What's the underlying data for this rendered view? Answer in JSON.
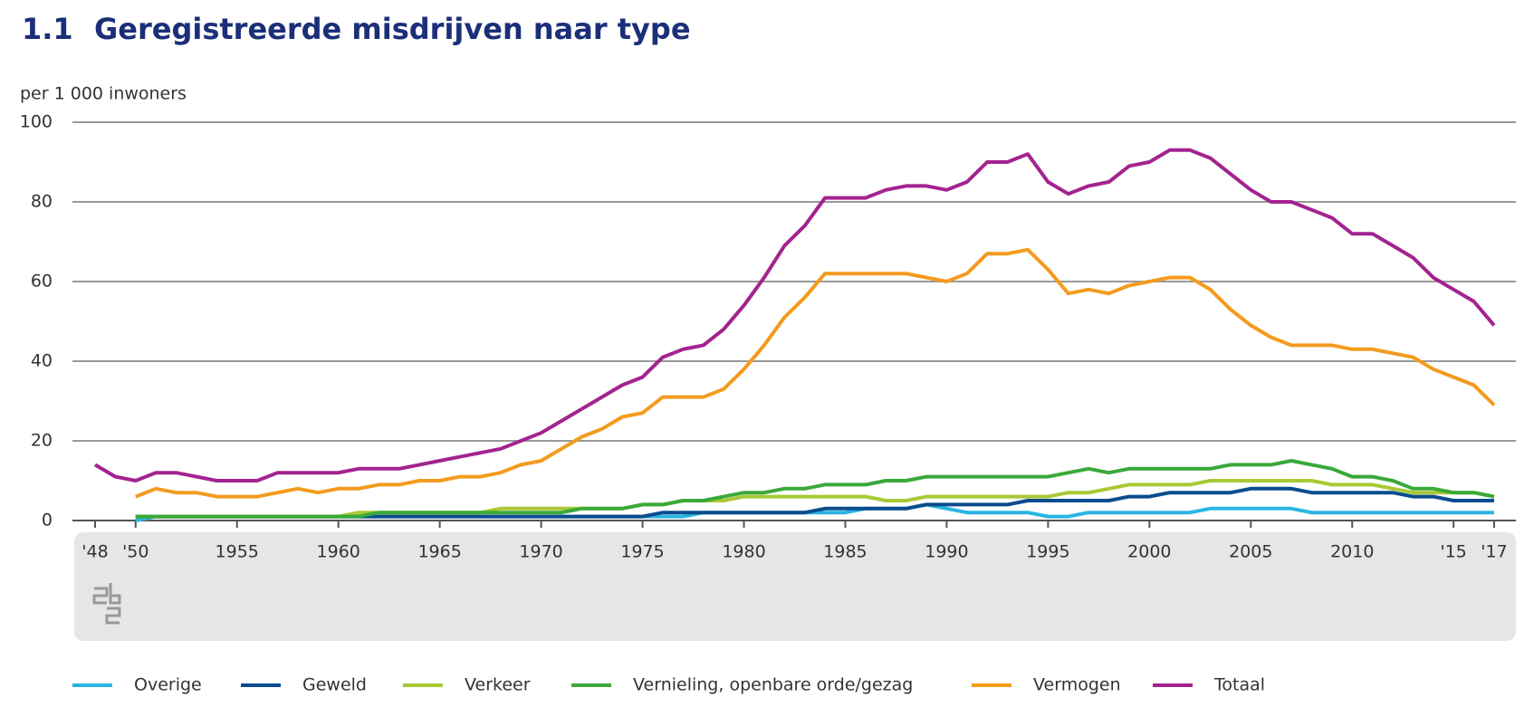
{
  "chart_data": {
    "type": "line",
    "number": "1.1",
    "title": "Geregistreerde misdrijven naar type",
    "y_label": "per 1 000 inwoners",
    "x": [
      1948,
      1949,
      1950,
      1951,
      1952,
      1953,
      1954,
      1955,
      1956,
      1957,
      1958,
      1959,
      1960,
      1961,
      1962,
      1963,
      1964,
      1965,
      1966,
      1967,
      1968,
      1969,
      1970,
      1971,
      1972,
      1973,
      1974,
      1975,
      1976,
      1977,
      1978,
      1979,
      1980,
      1981,
      1982,
      1983,
      1984,
      1985,
      1986,
      1987,
      1988,
      1989,
      1990,
      1991,
      1992,
      1993,
      1994,
      1995,
      1996,
      1997,
      1998,
      1999,
      2000,
      2001,
      2002,
      2003,
      2004,
      2005,
      2006,
      2007,
      2008,
      2009,
      2010,
      2011,
      2012,
      2013,
      2014,
      2015,
      2016,
      2017
    ],
    "xlim": [
      1948,
      2017
    ],
    "xticks": [
      {
        "value": 1948,
        "label": "'48"
      },
      {
        "value": 1950,
        "label": "'50"
      },
      1955,
      1960,
      1965,
      1970,
      1975,
      1980,
      1985,
      1990,
      1995,
      2000,
      2005,
      2010,
      {
        "value": 2015,
        "label": "'15"
      },
      {
        "value": 2017,
        "label": "'17"
      }
    ],
    "ylim": [
      0,
      100
    ],
    "yticks": [
      0,
      20,
      40,
      60,
      80,
      100
    ],
    "grid": true,
    "legend": "bottom",
    "series": [
      {
        "name": "Overige",
        "color": "#2bb5e2",
        "values": [
          null,
          null,
          0,
          1,
          1,
          1,
          1,
          1,
          1,
          1,
          1,
          1,
          1,
          1,
          1,
          1,
          1,
          1,
          1,
          1,
          1,
          1,
          1,
          1,
          1,
          1,
          1,
          1,
          1,
          1,
          2,
          2,
          2,
          2,
          2,
          2,
          2,
          2,
          3,
          3,
          3,
          4,
          3,
          2,
          2,
          2,
          2,
          1,
          1,
          2,
          2,
          2,
          2,
          2,
          2,
          3,
          3,
          3,
          3,
          3,
          2,
          2,
          2,
          2,
          2,
          2,
          2,
          2,
          2,
          2
        ]
      },
      {
        "name": "Geweld",
        "color": "#0b4c8e",
        "values": [
          null,
          null,
          1,
          1,
          1,
          1,
          1,
          1,
          1,
          1,
          1,
          1,
          1,
          1,
          1,
          1,
          1,
          1,
          1,
          1,
          1,
          1,
          1,
          1,
          1,
          1,
          1,
          1,
          2,
          2,
          2,
          2,
          2,
          2,
          2,
          2,
          3,
          3,
          3,
          3,
          3,
          4,
          4,
          4,
          4,
          4,
          5,
          5,
          5,
          5,
          5,
          6,
          6,
          7,
          7,
          7,
          7,
          8,
          8,
          8,
          7,
          7,
          7,
          7,
          7,
          6,
          6,
          5,
          5,
          5
        ]
      },
      {
        "name": "Verkeer",
        "color": "#a8c934",
        "values": [
          null,
          null,
          1,
          1,
          1,
          1,
          1,
          1,
          1,
          1,
          1,
          1,
          1,
          2,
          2,
          2,
          2,
          2,
          2,
          2,
          3,
          3,
          3,
          3,
          3,
          3,
          3,
          4,
          4,
          5,
          5,
          5,
          6,
          6,
          6,
          6,
          6,
          6,
          6,
          5,
          5,
          6,
          6,
          6,
          6,
          6,
          6,
          6,
          7,
          7,
          8,
          9,
          9,
          9,
          9,
          10,
          10,
          10,
          10,
          10,
          10,
          9,
          9,
          9,
          8,
          7,
          7,
          7,
          7,
          6
        ]
      },
      {
        "name": "Vernieling, openbare orde/gezag",
        "color": "#3aa93a",
        "values": [
          null,
          null,
          1,
          1,
          1,
          1,
          1,
          1,
          1,
          1,
          1,
          1,
          1,
          1,
          2,
          2,
          2,
          2,
          2,
          2,
          2,
          2,
          2,
          2,
          3,
          3,
          3,
          4,
          4,
          5,
          5,
          6,
          7,
          7,
          8,
          8,
          9,
          9,
          9,
          10,
          10,
          11,
          11,
          11,
          11,
          11,
          11,
          11,
          12,
          13,
          12,
          13,
          13,
          13,
          13,
          13,
          14,
          14,
          14,
          15,
          14,
          13,
          11,
          11,
          10,
          8,
          8,
          7,
          7,
          6
        ]
      },
      {
        "name": "Vermogen",
        "color": "#f39b1e",
        "values": [
          null,
          null,
          6,
          8,
          7,
          7,
          6,
          6,
          6,
          7,
          8,
          7,
          8,
          8,
          9,
          9,
          10,
          10,
          11,
          11,
          12,
          14,
          15,
          18,
          21,
          23,
          26,
          27,
          31,
          31,
          31,
          33,
          38,
          44,
          51,
          56,
          62,
          62,
          62,
          62,
          62,
          61,
          60,
          62,
          67,
          67,
          68,
          63,
          57,
          58,
          57,
          59,
          60,
          61,
          61,
          58,
          53,
          49,
          46,
          44,
          44,
          44,
          43,
          43,
          42,
          41,
          38,
          36,
          34,
          29
        ]
      },
      {
        "name": "Totaal",
        "color": "#a3238f",
        "values": [
          14,
          11,
          10,
          12,
          12,
          11,
          10,
          10,
          10,
          12,
          12,
          12,
          12,
          13,
          13,
          13,
          14,
          15,
          16,
          17,
          18,
          20,
          22,
          25,
          28,
          31,
          34,
          36,
          41,
          43,
          44,
          48,
          54,
          61,
          69,
          74,
          81,
          81,
          81,
          83,
          84,
          84,
          83,
          85,
          90,
          90,
          92,
          85,
          82,
          84,
          85,
          89,
          90,
          93,
          93,
          91,
          87,
          83,
          80,
          80,
          78,
          76,
          72,
          72,
          69,
          66,
          61,
          58,
          55,
          49
        ]
      }
    ]
  }
}
